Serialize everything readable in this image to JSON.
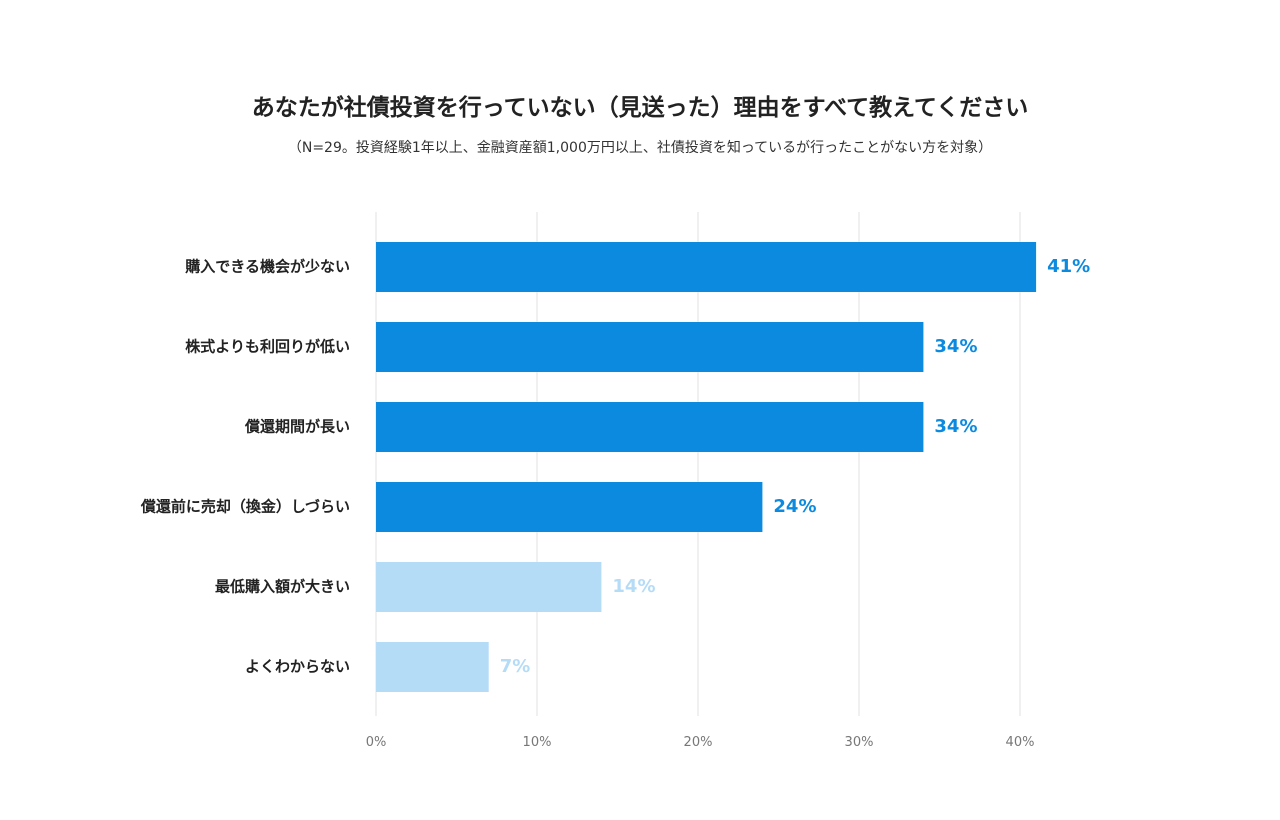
{
  "chart_data": {
    "type": "bar",
    "orientation": "horizontal",
    "title": "あなたが社債投資を行っていない（見送った）理由をすべて教えてください",
    "subtitle": "（N=29。投資経験1年以上、金融資産額1,000万円以上、社債投資を知っているが行ったことがない方を対象）",
    "categories": [
      "購入できる機会が少ない",
      "株式よりも利回りが低い",
      "償還期間が長い",
      "償還前に売却（換金）しづらい",
      "最低購入額が大きい",
      "よくわからない"
    ],
    "values": [
      41,
      34,
      34,
      24,
      14,
      7
    ],
    "value_labels": [
      "41%",
      "34%",
      "34%",
      "24%",
      "14%",
      "7%"
    ],
    "highlighted": [
      true,
      true,
      true,
      true,
      false,
      false
    ],
    "xlim": [
      0,
      40
    ],
    "xticks": [
      0,
      10,
      20,
      30,
      40
    ],
    "xtick_labels": [
      "0%",
      "10%",
      "20%",
      "30%",
      "40%"
    ],
    "grid": true,
    "colors": {
      "highlight": "#0b8ae0",
      "muted": "#b5dcf7",
      "grid": "#e2e2e2"
    }
  }
}
